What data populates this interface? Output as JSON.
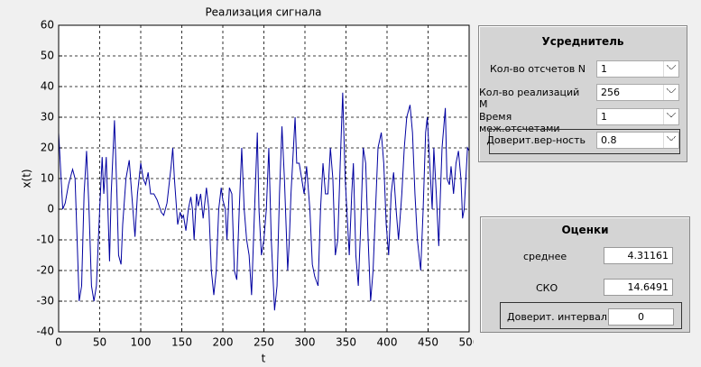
{
  "chart_data": {
    "type": "line",
    "title": "Реализация сигнала",
    "xlabel": "t",
    "ylabel": "x(t)",
    "x": [
      0,
      2,
      5,
      8,
      12,
      17,
      20,
      25,
      28,
      31,
      34,
      37,
      40,
      43,
      46,
      50,
      53,
      55,
      58,
      62,
      64,
      68,
      71,
      73,
      76,
      78,
      82,
      86,
      89,
      93,
      96,
      100,
      103,
      106,
      109,
      112,
      116,
      120,
      125,
      128,
      132,
      137,
      139,
      141,
      145,
      148,
      150,
      152,
      155,
      158,
      161,
      163,
      165,
      168,
      170,
      173,
      176,
      180,
      183,
      186,
      189,
      192,
      195,
      198,
      200,
      203,
      205,
      208,
      211,
      214,
      217,
      220,
      223,
      226,
      229,
      232,
      235,
      238,
      240,
      242,
      244,
      247,
      250,
      253,
      256,
      259,
      263,
      266,
      269,
      272,
      275,
      279,
      281,
      283,
      285,
      288,
      290,
      293,
      296,
      299,
      302,
      306,
      309,
      312,
      316,
      319,
      322,
      325,
      328,
      331,
      334,
      337,
      340,
      343,
      346,
      349,
      352,
      354,
      357,
      359,
      362,
      365,
      368,
      371,
      374,
      377,
      380,
      383,
      386,
      389,
      393,
      396,
      399,
      402,
      405,
      408,
      411,
      414,
      418,
      421,
      424,
      428,
      431,
      434,
      437,
      441,
      444,
      447,
      449,
      452,
      455,
      457,
      460,
      463,
      465,
      467,
      471,
      473,
      476,
      478,
      481,
      484,
      487,
      490,
      492,
      494,
      496,
      498,
      500
    ],
    "series": [
      {
        "name": "x(t)",
        "color": "#0000a0",
        "values": [
          25,
          15,
          0,
          2,
          8,
          13,
          10,
          -30,
          -25,
          5,
          19,
          0,
          -25,
          -30,
          -25,
          0,
          17,
          5,
          17,
          -17,
          5,
          29,
          5,
          -15,
          -18,
          -5,
          10,
          16,
          5,
          -9,
          5,
          15,
          10,
          8,
          12,
          5,
          5,
          3,
          -1,
          -2,
          2,
          14,
          20,
          10,
          -5,
          -1,
          -3,
          -2,
          -7,
          0,
          4,
          0,
          -10,
          5,
          1,
          5,
          -3,
          7,
          0,
          -20,
          -28,
          -20,
          0,
          7,
          3,
          0,
          -10,
          7,
          5,
          -20,
          -23,
          0,
          20,
          0,
          -10,
          -15,
          -28,
          -5,
          10,
          25,
          0,
          -15,
          -10,
          0,
          20,
          -10,
          -33,
          -25,
          5,
          27,
          10,
          -20,
          -10,
          5,
          15,
          30,
          15,
          15,
          10,
          5,
          14,
          0,
          -18,
          -22,
          -25,
          0,
          15,
          5,
          5,
          20,
          10,
          -15,
          -10,
          15,
          38,
          10,
          -5,
          -15,
          5,
          15,
          -15,
          -25,
          -5,
          20,
          15,
          -10,
          -30,
          -20,
          0,
          20,
          25,
          15,
          -5,
          -15,
          5,
          12,
          0,
          -10,
          5,
          20,
          30,
          34,
          25,
          5,
          -10,
          -20,
          0,
          25,
          30,
          15,
          0,
          20,
          5,
          -12,
          5,
          20,
          33,
          10,
          8,
          14,
          5,
          15,
          19,
          10,
          -3,
          0,
          10,
          20,
          19
        ]
      }
    ],
    "xlim": [
      0,
      500
    ],
    "ylim": [
      -40,
      60
    ],
    "xticks": [
      0,
      50,
      100,
      150,
      200,
      250,
      300,
      350,
      400,
      450,
      500
    ],
    "yticks": [
      -40,
      -30,
      -20,
      -10,
      0,
      10,
      20,
      30,
      40,
      50,
      60
    ],
    "grid": true
  },
  "averager": {
    "title": "Усреднитель",
    "fields": [
      {
        "label": "Кол-во отсчетов N",
        "value": "1"
      },
      {
        "label": "Кол-во реализаций M",
        "value": "256"
      },
      {
        "label": "Время меж.отсчетами",
        "value": "1"
      },
      {
        "label": "Доверит.вер-ность",
        "value": "0.8"
      }
    ]
  },
  "estimates": {
    "title": "Оценки",
    "fields": [
      {
        "label": "среднее",
        "value": "4.31161"
      },
      {
        "label": "СКО",
        "value": "14.6491"
      },
      {
        "label": "Доверит. интервал",
        "value": "0"
      }
    ]
  }
}
